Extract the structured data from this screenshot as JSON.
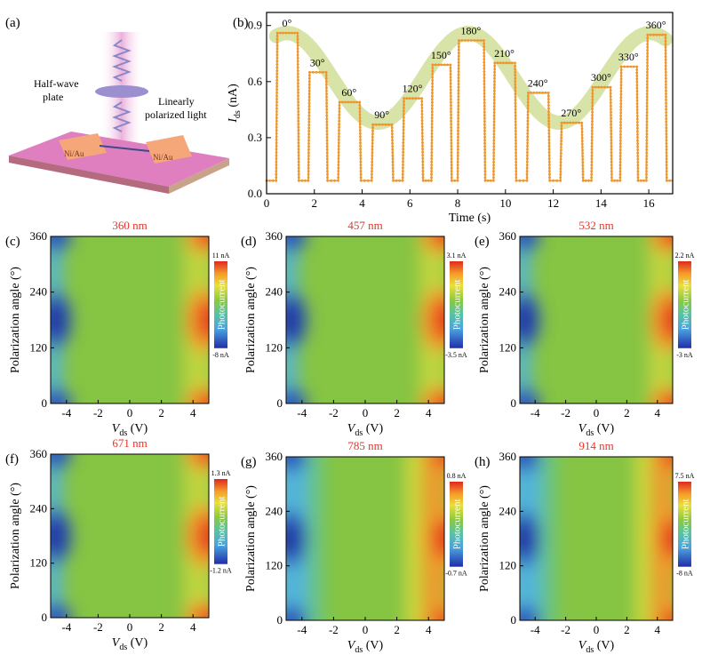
{
  "panel_letters": {
    "a": "(a)",
    "b": "(b)",
    "c": "(c)",
    "d": "(d)",
    "e": "(e)",
    "f": "(f)",
    "g": "(g)",
    "h": "(h)"
  },
  "device": {
    "half_wave_label_1": "Half-wave",
    "half_wave_label_2": "plate",
    "light_label": "Linearly",
    "light_label_2": "polarized light",
    "contact_left": "Ni/Au",
    "contact_right": "Ni/Au",
    "colors": {
      "beam": "#e9a8d6",
      "substrate": "#e07fc0",
      "contact": "#f5a77a",
      "plate": "#9b8fd0"
    }
  },
  "chart_data": [
    {
      "id": "b",
      "type": "line",
      "xlabel": "Time (s)",
      "ylabel_main": "I",
      "ylabel_sub": "ds",
      "ylabel_unit": " (nA)",
      "xlim": [
        0,
        17
      ],
      "ylim": [
        0,
        0.97
      ],
      "xticks": [
        0,
        2,
        4,
        6,
        8,
        10,
        12,
        14,
        16
      ],
      "yticks": [
        0.0,
        0.3,
        0.6,
        0.9
      ],
      "ytick_labels": [
        "0.0",
        "0.3",
        "0.6",
        "0.9"
      ],
      "dark_level": 0.07,
      "series_color": "#f0952a",
      "envelope_color": "#c9d98a",
      "pulses": [
        {
          "angle_label": "0°",
          "t_on": 0.4,
          "t_off": 1.3,
          "value": 0.86
        },
        {
          "angle_label": "30°",
          "t_on": 1.75,
          "t_off": 2.5,
          "value": 0.65
        },
        {
          "angle_label": "60°",
          "t_on": 3.0,
          "t_off": 3.9,
          "value": 0.49
        },
        {
          "angle_label": "90°",
          "t_on": 4.4,
          "t_off": 5.25,
          "value": 0.37
        },
        {
          "angle_label": "120°",
          "t_on": 5.7,
          "t_off": 6.5,
          "value": 0.51
        },
        {
          "angle_label": "150°",
          "t_on": 6.9,
          "t_off": 7.7,
          "value": 0.69
        },
        {
          "angle_label": "180°",
          "t_on": 8.0,
          "t_off": 9.1,
          "value": 0.82
        },
        {
          "angle_label": "210°",
          "t_on": 9.5,
          "t_off": 10.4,
          "value": 0.7
        },
        {
          "angle_label": "240°",
          "t_on": 10.9,
          "t_off": 11.8,
          "value": 0.54
        },
        {
          "angle_label": "270°",
          "t_on": 12.3,
          "t_off": 13.2,
          "value": 0.38
        },
        {
          "angle_label": "300°",
          "t_on": 13.6,
          "t_off": 14.4,
          "value": 0.57
        },
        {
          "angle_label": "330°",
          "t_on": 14.8,
          "t_off": 15.5,
          "value": 0.68
        },
        {
          "angle_label": "360°",
          "t_on": 15.9,
          "t_off": 16.7,
          "value": 0.85
        }
      ]
    },
    {
      "id": "c",
      "type": "heatmap",
      "title": "360 nm",
      "cb_max": "11 nA",
      "cb_min": "-8 nA",
      "xticks": [
        -4,
        -2,
        0,
        2,
        4
      ],
      "yticks": [
        0,
        120,
        240,
        360
      ],
      "xlim": [
        -5,
        5
      ],
      "ylim": [
        0,
        360
      ],
      "bands": false
    },
    {
      "id": "d",
      "type": "heatmap",
      "title": "457 nm",
      "cb_max": "3.1 nA",
      "cb_min": "-3.5 nA",
      "xticks": [
        -4,
        -2,
        0,
        2,
        4
      ],
      "yticks": [
        0,
        120,
        240,
        360
      ],
      "xlim": [
        -5,
        5
      ],
      "ylim": [
        0,
        360
      ],
      "bands": false
    },
    {
      "id": "e",
      "type": "heatmap",
      "title": "532 nm",
      "cb_max": "2.2 nA",
      "cb_min": "-3 nA",
      "xticks": [
        -4,
        -2,
        0,
        2,
        4
      ],
      "yticks": [
        0,
        120,
        240,
        360
      ],
      "xlim": [
        -5,
        5
      ],
      "ylim": [
        0,
        360
      ],
      "bands": false
    },
    {
      "id": "f",
      "type": "heatmap",
      "title": "671 nm",
      "cb_max": "1.3 nA",
      "cb_min": "-1.2 nA",
      "xticks": [
        -4,
        -2,
        0,
        2,
        4
      ],
      "yticks": [
        0,
        120,
        240,
        360
      ],
      "xlim": [
        -5,
        5
      ],
      "ylim": [
        0,
        360
      ],
      "bands": false
    },
    {
      "id": "g",
      "type": "heatmap",
      "title": "785 nm",
      "cb_max": "0.8 nA",
      "cb_min": "-0.7 nA",
      "xticks": [
        -4,
        -2,
        0,
        2,
        4
      ],
      "yticks": [
        0,
        120,
        240,
        360
      ],
      "xlim": [
        -5,
        5
      ],
      "ylim": [
        0,
        360
      ],
      "bands": true
    },
    {
      "id": "h",
      "type": "heatmap",
      "title": "914 nm",
      "cb_max": "7.5 nA",
      "cb_min": "-8 nA",
      "xticks": [
        -4,
        -2,
        0,
        2,
        4
      ],
      "yticks": [
        0,
        120,
        240,
        360
      ],
      "xlim": [
        -5,
        5
      ],
      "ylim": [
        0,
        360
      ],
      "bands": true
    }
  ],
  "heatmap_axis": {
    "ylabel": "Polarization angle (°)",
    "xlabel_main": "V",
    "xlabel_sub": "ds",
    "xlabel_unit": " (V)",
    "colorbar_title": "Photocurrent"
  }
}
